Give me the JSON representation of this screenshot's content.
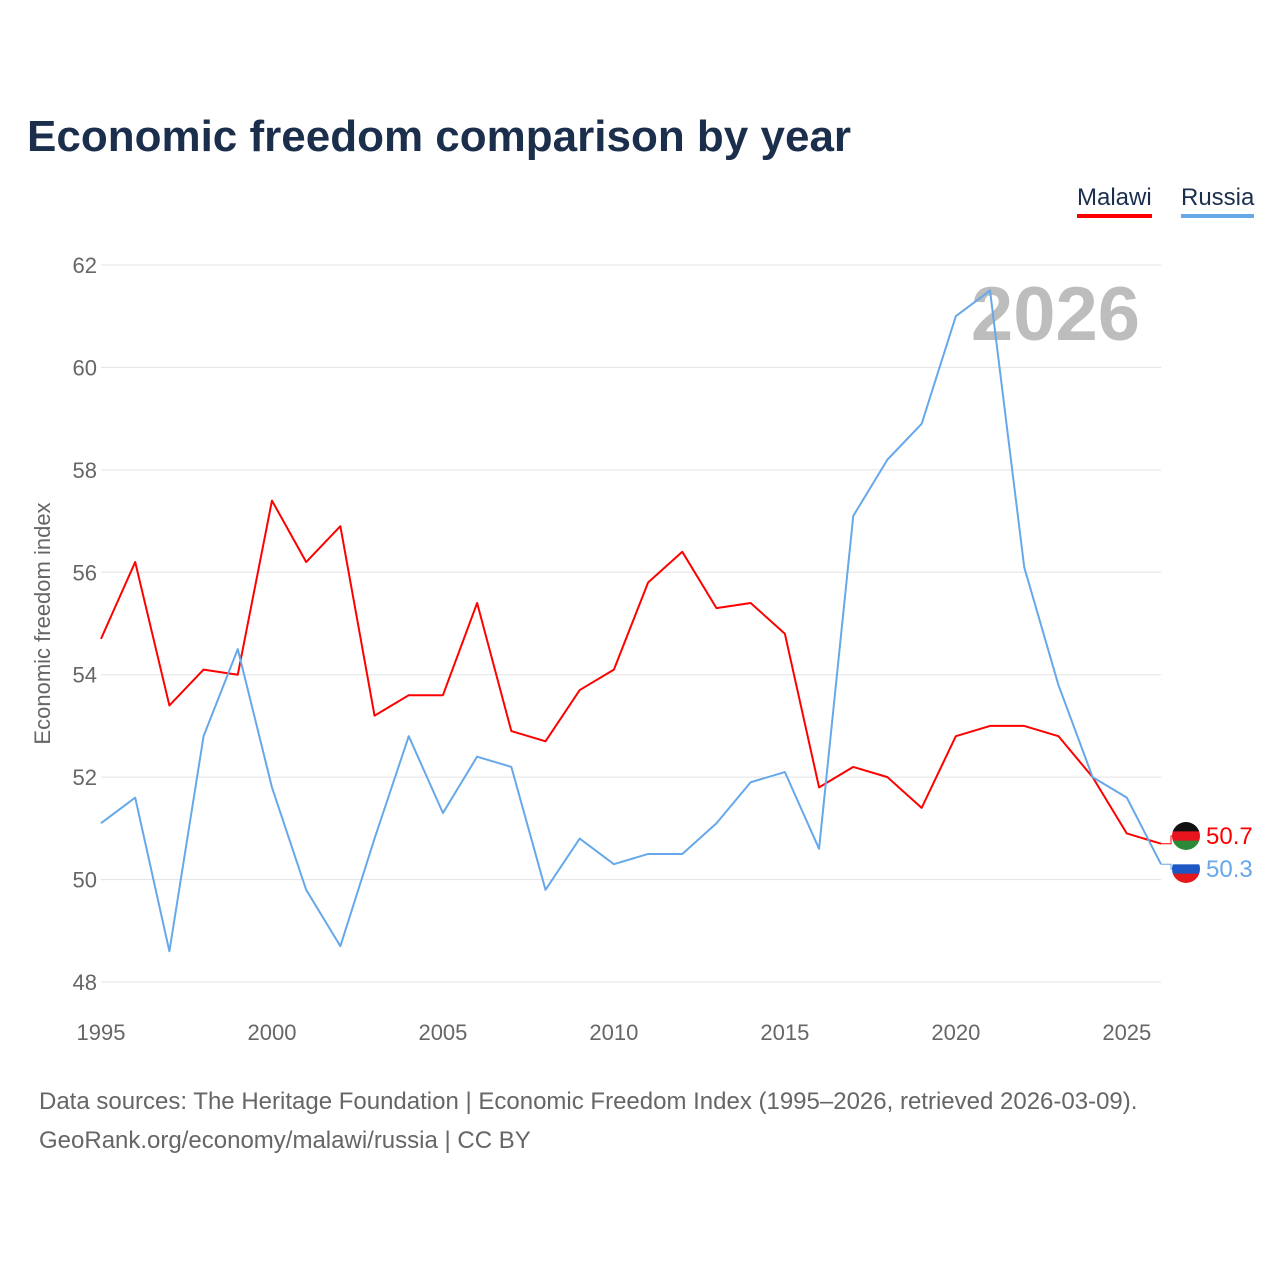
{
  "title": "Economic freedom comparison by year",
  "chart_data": {
    "type": "line",
    "title": "Economic freedom comparison by year",
    "xlabel": "",
    "ylabel": "Economic freedom index",
    "xlim": [
      1995,
      2026
    ],
    "ylim": [
      48,
      62
    ],
    "x_ticks": [
      1995,
      2000,
      2005,
      2010,
      2015,
      2020,
      2025
    ],
    "y_ticks": [
      48,
      50,
      52,
      54,
      56,
      58,
      60,
      62
    ],
    "grid": true,
    "legend_placement": "top-right",
    "year_watermark": "2026",
    "x": [
      1995,
      1996,
      1997,
      1998,
      1999,
      2000,
      2001,
      2002,
      2003,
      2004,
      2005,
      2006,
      2007,
      2008,
      2009,
      2010,
      2011,
      2012,
      2013,
      2014,
      2015,
      2016,
      2017,
      2018,
      2019,
      2020,
      2021,
      2022,
      2023,
      2024,
      2025,
      2026
    ],
    "series": [
      {
        "name": "Malawi",
        "color": "#ff0000",
        "end_label": "50.7",
        "values": [
          54.7,
          56.2,
          53.4,
          54.1,
          54.0,
          57.4,
          56.2,
          56.9,
          53.2,
          53.6,
          53.6,
          55.4,
          52.9,
          52.7,
          53.7,
          54.1,
          55.8,
          56.4,
          55.3,
          55.4,
          54.8,
          51.8,
          52.2,
          52.0,
          51.4,
          52.8,
          53.0,
          53.0,
          52.8,
          52.0,
          50.9,
          50.7
        ]
      },
      {
        "name": "Russia",
        "color": "#66a8ea",
        "end_label": "50.3",
        "values": [
          51.1,
          51.6,
          48.6,
          52.8,
          54.5,
          51.8,
          49.8,
          48.7,
          50.8,
          52.8,
          51.3,
          52.4,
          52.2,
          49.8,
          50.8,
          50.3,
          50.5,
          50.5,
          51.1,
          51.9,
          52.1,
          50.6,
          57.1,
          58.2,
          58.9,
          61.0,
          61.5,
          56.1,
          53.8,
          52.0,
          51.6,
          50.3
        ]
      }
    ]
  },
  "sources": {
    "line1": "Data sources: The Heritage Foundation | Economic Freedom Index (1995–2026, retrieved 2026-03-09).",
    "line2": "GeoRank.org/economy/malawi/russia | CC BY"
  }
}
